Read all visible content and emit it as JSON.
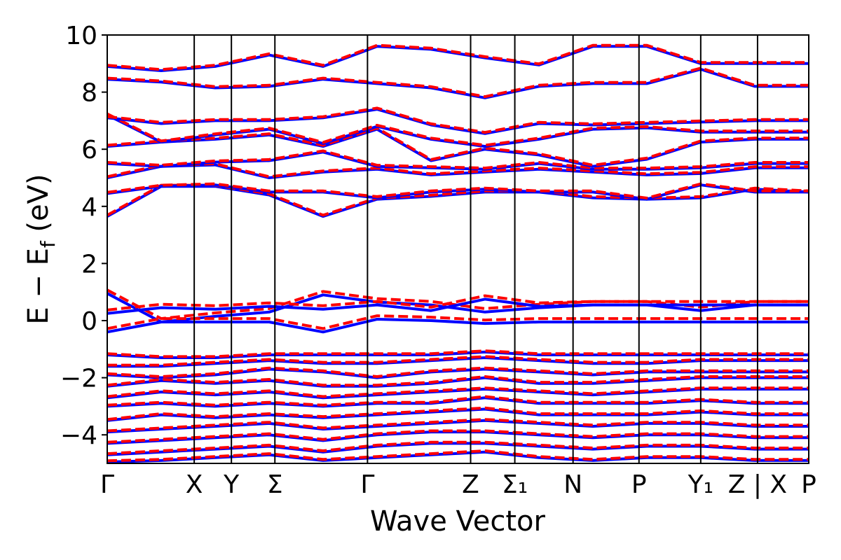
{
  "chart_data": {
    "type": "line",
    "title": "",
    "xlabel": "Wave Vector",
    "ylabel": "E − E_f (eV)",
    "ylabel_main": "E − E",
    "ylabel_sub": "f",
    "ylabel_unit": " (eV)",
    "ylim": [
      -5,
      10
    ],
    "yticks": [
      -4,
      -2,
      0,
      2,
      4,
      6,
      8,
      10
    ],
    "ytick_labels": [
      "−4",
      "−2",
      "0",
      "2",
      "4",
      "6",
      "8",
      "10"
    ],
    "grid": false,
    "legend": "none",
    "kpath_labels": [
      "Γ",
      "X",
      "Y",
      "Σ",
      "Γ",
      "Z",
      "Σ₁",
      "N",
      "P",
      "Y₁",
      "Z | X",
      "P"
    ],
    "kpath_positions": [
      0,
      0.124,
      0.177,
      0.239,
      0.371,
      0.518,
      0.581,
      0.664,
      0.758,
      0.846,
      0.927,
      1.0
    ],
    "series_styles": [
      {
        "style": "solid",
        "color": "#0000ff"
      },
      {
        "style": "dashed",
        "color": "#ff0000"
      }
    ],
    "bands_conduction": [
      [
        3.65,
        4.7,
        4.7,
        4.4,
        3.65,
        4.25,
        4.35,
        4.5,
        4.5,
        4.3,
        4.25,
        4.3,
        4.6,
        4.5
      ],
      [
        4.45,
        4.7,
        4.75,
        4.5,
        4.5,
        4.3,
        4.5,
        4.6,
        4.5,
        4.5,
        4.25,
        4.75,
        4.5,
        4.5
      ],
      [
        5.0,
        5.4,
        5.45,
        5.0,
        5.2,
        5.3,
        5.1,
        5.2,
        5.3,
        5.2,
        5.1,
        5.15,
        5.35,
        5.35
      ],
      [
        5.5,
        5.4,
        5.55,
        5.6,
        5.9,
        5.4,
        5.35,
        5.3,
        5.5,
        5.3,
        5.3,
        5.35,
        5.5,
        5.5
      ],
      [
        6.1,
        6.25,
        6.35,
        6.5,
        6.1,
        6.7,
        5.6,
        6.0,
        5.8,
        5.4,
        5.65,
        6.25,
        6.35,
        6.35
      ],
      [
        7.2,
        6.25,
        6.5,
        6.7,
        6.2,
        6.8,
        6.35,
        6.1,
        6.35,
        6.7,
        6.75,
        6.6,
        6.6,
        6.6
      ],
      [
        7.1,
        6.9,
        7.0,
        7.0,
        7.1,
        7.4,
        6.85,
        6.55,
        6.9,
        6.85,
        6.9,
        6.95,
        7.0,
        7.0
      ],
      [
        8.45,
        8.35,
        8.15,
        8.2,
        8.45,
        8.3,
        8.15,
        7.8,
        8.2,
        8.3,
        8.3,
        8.8,
        8.2,
        8.2
      ],
      [
        8.9,
        8.75,
        8.9,
        9.3,
        8.9,
        9.6,
        9.5,
        9.2,
        8.95,
        9.6,
        9.6,
        9.0,
        9.0,
        9.0
      ]
    ],
    "bands_valence_window": [
      [
        0.95,
        -0.05,
        0.15,
        0.3,
        0.9,
        0.65,
        0.55,
        0.3,
        0.45,
        0.55,
        0.55,
        0.35,
        0.55,
        0.55
      ],
      [
        0.25,
        0.45,
        0.4,
        0.5,
        0.4,
        0.55,
        0.35,
        0.75,
        0.5,
        0.55,
        0.55,
        0.55,
        0.55,
        0.55
      ],
      [
        -0.4,
        -0.05,
        -0.05,
        -0.05,
        -0.4,
        0.05,
        0.0,
        -0.1,
        -0.05,
        -0.05,
        -0.05,
        -0.05,
        -0.05,
        -0.05
      ]
    ],
    "bands_valence_deep": [
      [
        -1.2,
        -1.3,
        -1.3,
        -1.2,
        -1.2,
        -1.2,
        -1.2,
        -1.1,
        -1.2,
        -1.2,
        -1.2,
        -1.2,
        -1.2,
        -1.2
      ],
      [
        -1.6,
        -1.6,
        -1.5,
        -1.4,
        -1.5,
        -1.5,
        -1.4,
        -1.3,
        -1.4,
        -1.5,
        -1.5,
        -1.4,
        -1.4,
        -1.4
      ],
      [
        -1.9,
        -2.0,
        -1.9,
        -1.7,
        -1.8,
        -2.0,
        -1.8,
        -1.7,
        -1.8,
        -1.9,
        -1.8,
        -1.8,
        -1.8,
        -1.8
      ],
      [
        -2.3,
        -2.1,
        -2.2,
        -2.1,
        -2.3,
        -2.3,
        -2.2,
        -2.0,
        -2.2,
        -2.2,
        -2.1,
        -2.0,
        -2.0,
        -2.0
      ],
      [
        -2.7,
        -2.5,
        -2.6,
        -2.5,
        -2.7,
        -2.6,
        -2.5,
        -2.4,
        -2.5,
        -2.6,
        -2.5,
        -2.4,
        -2.4,
        -2.4
      ],
      [
        -3.0,
        -2.9,
        -3.0,
        -2.9,
        -3.0,
        -2.9,
        -2.9,
        -2.7,
        -2.9,
        -2.9,
        -2.9,
        -2.8,
        -2.9,
        -2.9
      ],
      [
        -3.5,
        -3.3,
        -3.4,
        -3.3,
        -3.4,
        -3.3,
        -3.2,
        -3.1,
        -3.3,
        -3.3,
        -3.3,
        -3.2,
        -3.3,
        -3.3
      ],
      [
        -3.9,
        -3.8,
        -3.7,
        -3.6,
        -3.8,
        -3.7,
        -3.6,
        -3.5,
        -3.6,
        -3.7,
        -3.6,
        -3.6,
        -3.7,
        -3.7
      ],
      [
        -4.3,
        -4.2,
        -4.1,
        -4.0,
        -4.2,
        -4.0,
        -3.9,
        -3.9,
        -4.0,
        -4.1,
        -4.0,
        -4.0,
        -4.1,
        -4.1
      ],
      [
        -4.7,
        -4.6,
        -4.5,
        -4.4,
        -4.6,
        -4.4,
        -4.3,
        -4.3,
        -4.4,
        -4.5,
        -4.4,
        -4.4,
        -4.5,
        -4.5
      ],
      [
        -4.95,
        -4.9,
        -4.8,
        -4.7,
        -4.9,
        -4.8,
        -4.7,
        -4.6,
        -4.8,
        -4.9,
        -4.8,
        -4.8,
        -4.9,
        -4.9
      ]
    ]
  }
}
